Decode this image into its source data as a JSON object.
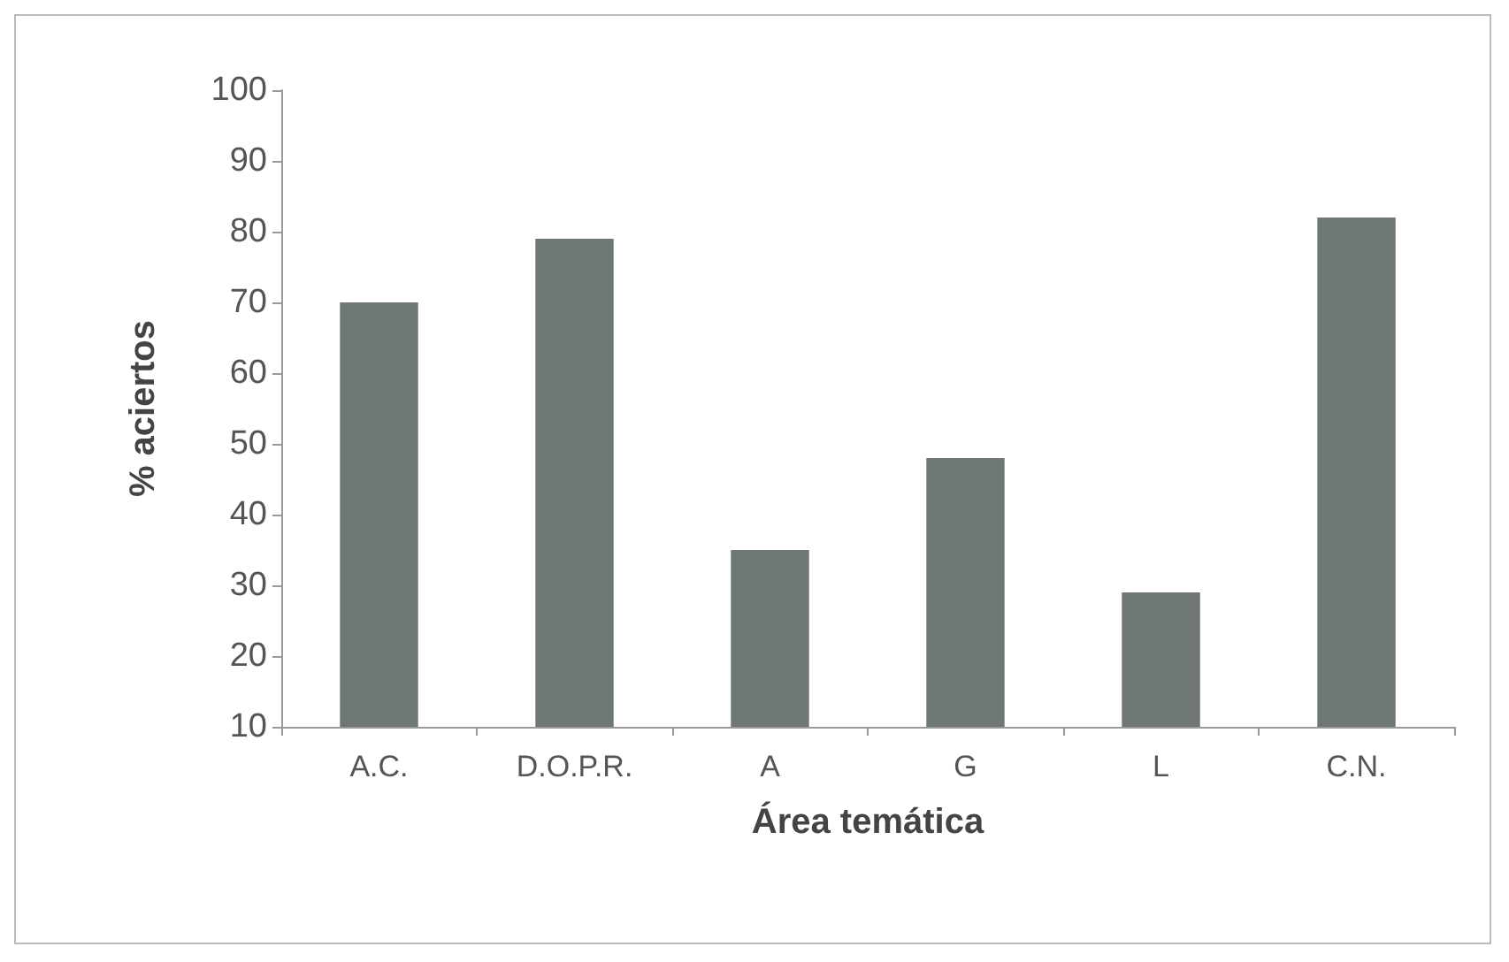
{
  "chart_data": {
    "type": "bar",
    "xlabel": "Área temática",
    "ylabel": "% aciertos",
    "categories": [
      "A.C.",
      "D.O.P.R.",
      "A",
      "G",
      "L",
      "C.N."
    ],
    "values": [
      70,
      79,
      35,
      48,
      29,
      82
    ],
    "color": "#6f7773",
    "ylim": [
      10,
      100
    ],
    "yticks": [
      10,
      20,
      30,
      40,
      50,
      60,
      70,
      80,
      90,
      100
    ],
    "grid": false
  }
}
